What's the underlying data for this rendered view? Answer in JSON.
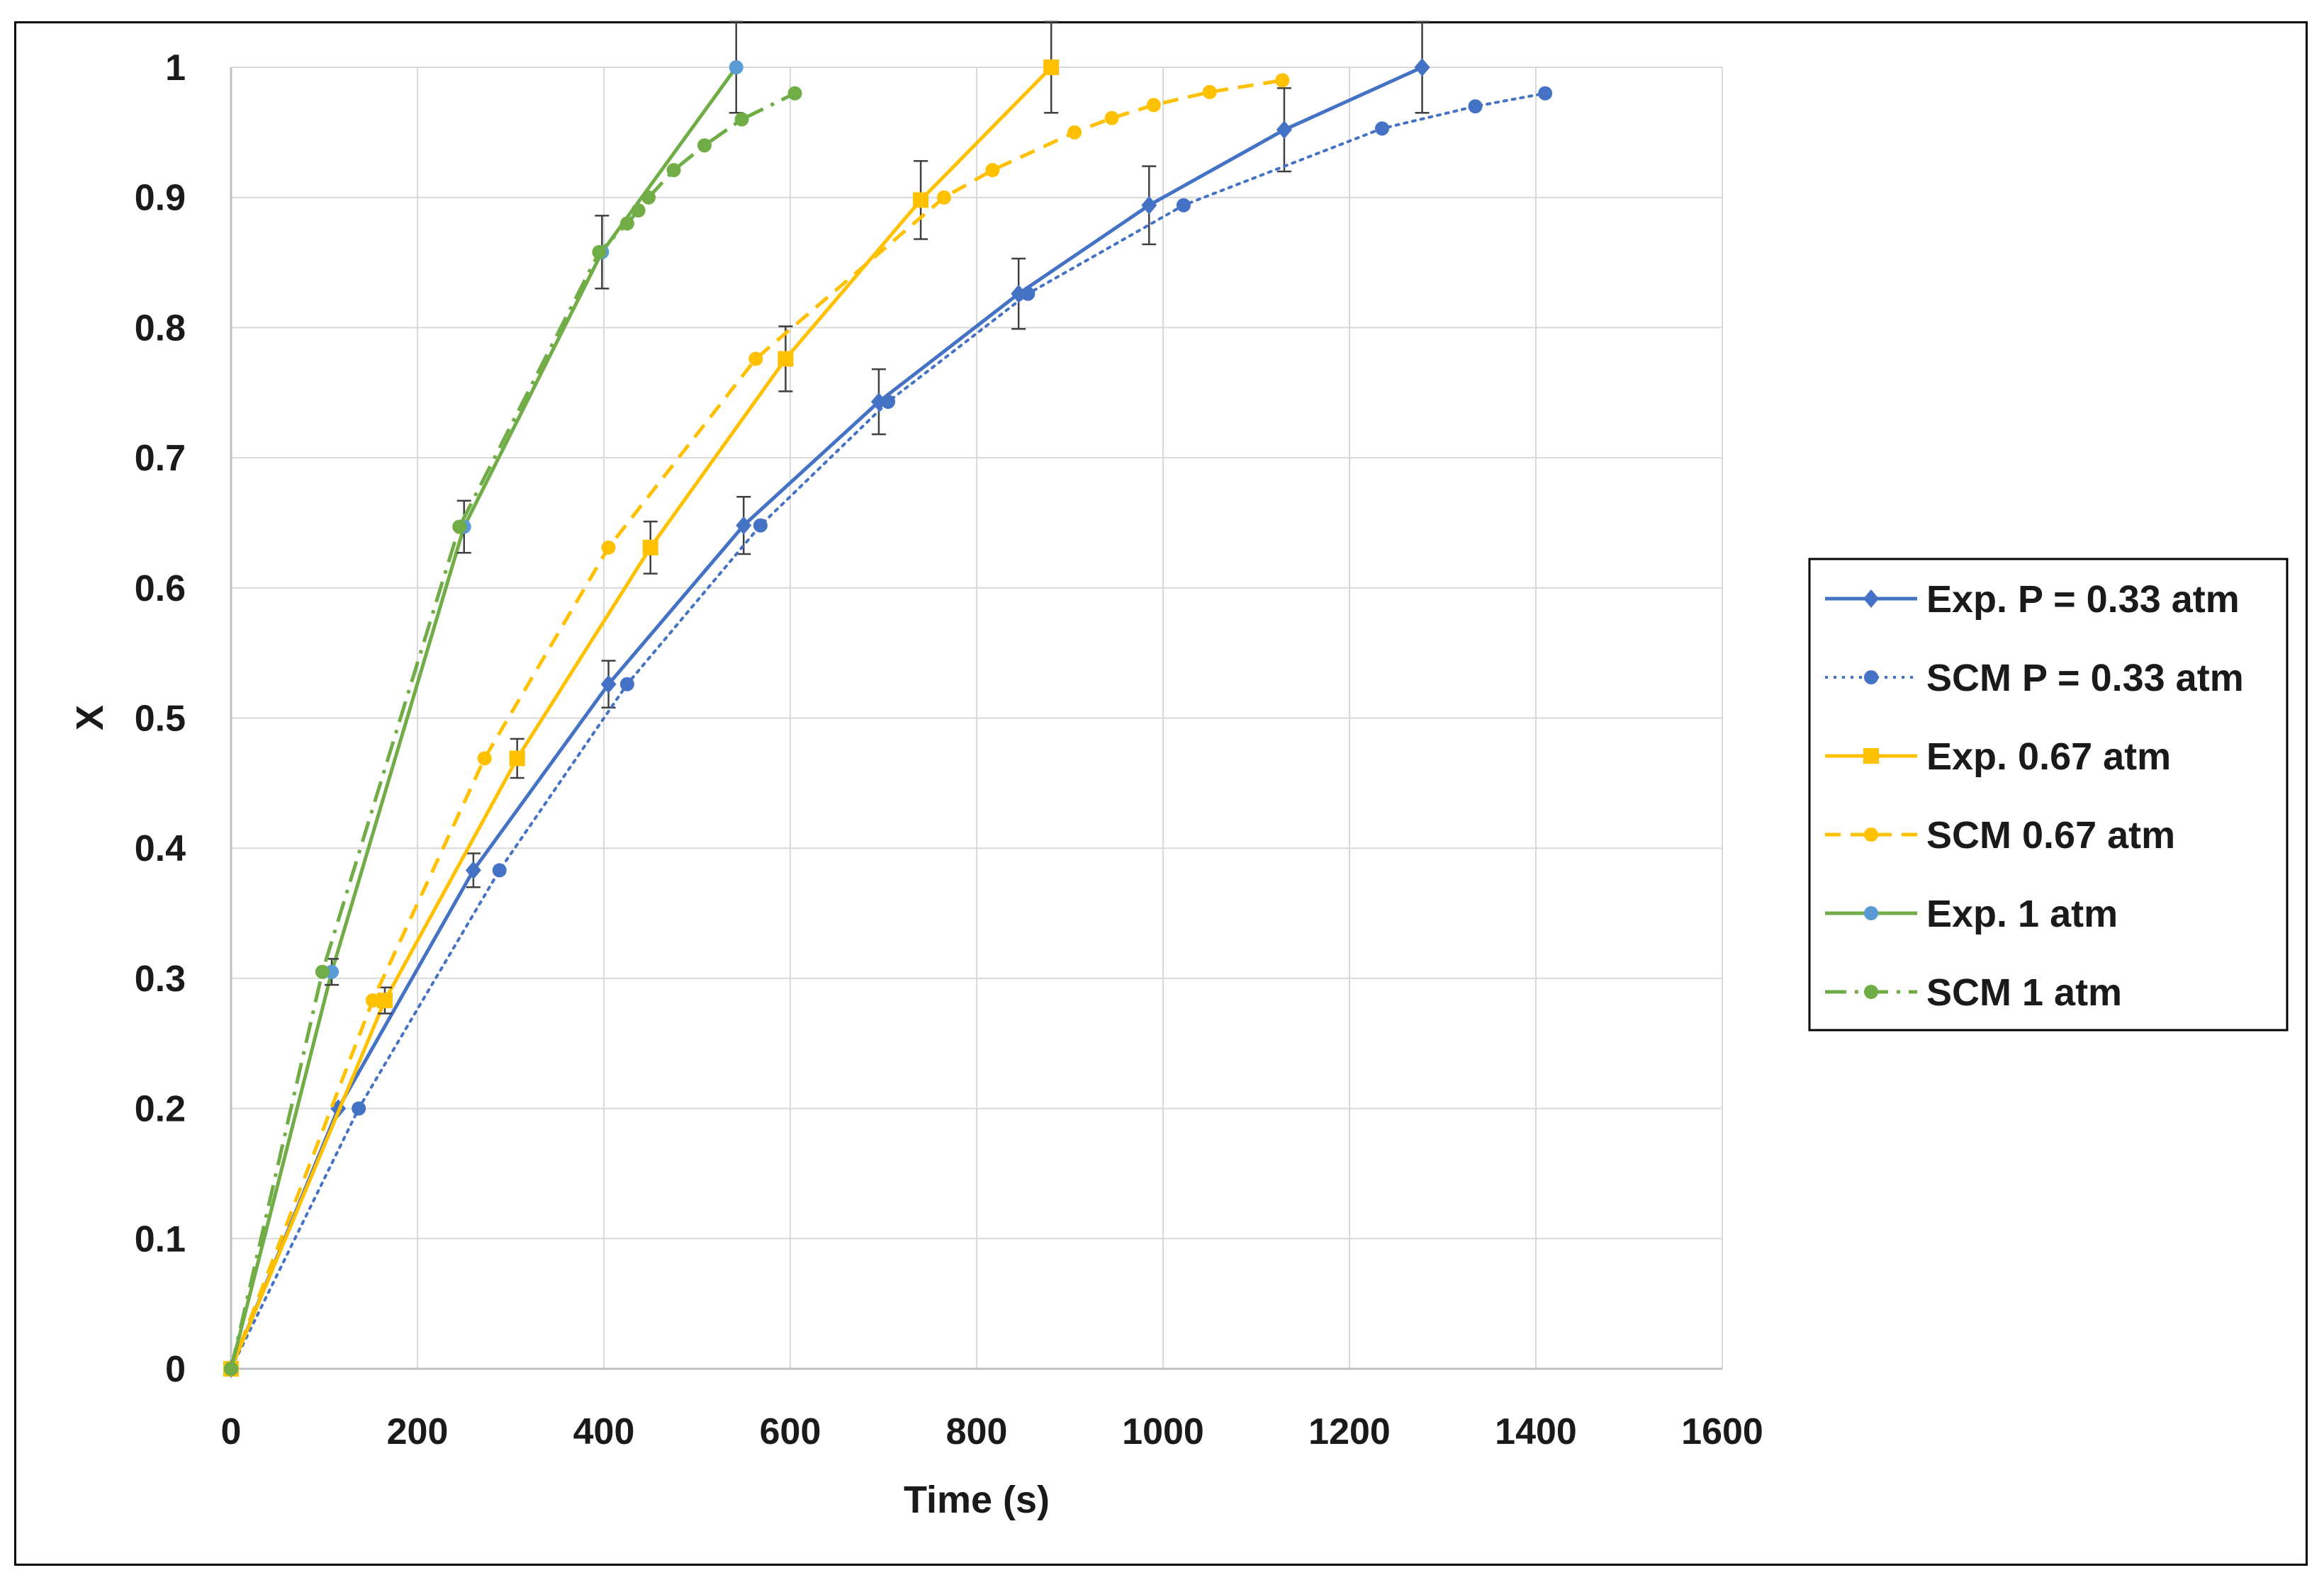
{
  "chart_data": {
    "type": "scatter",
    "title": "",
    "xlabel": "Time (s)",
    "ylabel": "X",
    "xlim": [
      0,
      1600
    ],
    "ylim": [
      0,
      1
    ],
    "x_ticks": [
      0,
      200,
      400,
      600,
      800,
      1000,
      1200,
      1400,
      1600
    ],
    "y_ticks": [
      0,
      0.1,
      0.2,
      0.3,
      0.4,
      0.5,
      0.6,
      0.7,
      0.8,
      0.9,
      1
    ],
    "x_tick_labels": [
      "0",
      "200",
      "400",
      "600",
      "800",
      "1000",
      "1200",
      "1400",
      "1600"
    ],
    "y_tick_labels": [
      "0",
      "0.1",
      "0.2",
      "0.3",
      "0.4",
      "0.5",
      "0.6",
      "0.7",
      "0.8",
      "0.9",
      "1"
    ],
    "grid": true,
    "legend_position": "right",
    "series": [
      {
        "name": "Exp. P = 0.33 atm",
        "color": "#4472C4",
        "line": "solid",
        "marker": "diamond",
        "x": [
          0,
          115,
          260,
          405,
          550,
          695,
          845,
          985,
          1130,
          1278
        ],
        "y": [
          0,
          0.2,
          0.383,
          0.526,
          0.648,
          0.743,
          0.826,
          0.894,
          0.952,
          1.0
        ],
        "error": [
          0,
          0,
          0.013,
          0.018,
          0.022,
          0.025,
          0.027,
          0.03,
          0.032,
          0.035
        ]
      },
      {
        "name": "SCM P = 0.33 atm",
        "color": "#4472C4",
        "line": "dotted",
        "marker": "circle",
        "x": [
          0,
          137,
          288,
          425,
          568,
          705,
          855,
          1022,
          1235,
          1335,
          1410
        ],
        "y": [
          0,
          0.2,
          0.383,
          0.526,
          0.648,
          0.743,
          0.826,
          0.894,
          0.953,
          0.97,
          0.98
        ]
      },
      {
        "name": "Exp. 0.67 atm",
        "color": "#FFC000",
        "line": "solid",
        "marker": "square",
        "x": [
          0,
          165,
          307,
          450,
          595,
          740,
          880
        ],
        "y": [
          0,
          0.283,
          0.469,
          0.631,
          0.776,
          0.898,
          1.0
        ],
        "error": [
          0,
          0.01,
          0.015,
          0.02,
          0.025,
          0.03,
          0.035
        ]
      },
      {
        "name": "SCM 0.67 atm",
        "color": "#FFC000",
        "line": "dashed",
        "marker": "circle",
        "x": [
          0,
          152,
          272,
          405,
          563,
          765,
          817,
          905,
          945,
          990,
          1050,
          1128
        ],
        "y": [
          0,
          0.283,
          0.469,
          0.631,
          0.776,
          0.9,
          0.921,
          0.95,
          0.961,
          0.971,
          0.981,
          0.99
        ]
      },
      {
        "name": "Exp. 1 atm",
        "color": "#70AD47",
        "line": "solid",
        "marker": "circle",
        "marker_color": "#5B9BD5",
        "x": [
          0,
          108,
          250,
          398,
          542
        ],
        "y": [
          0,
          0.305,
          0.647,
          0.858,
          1.0
        ],
        "error": [
          0,
          0.01,
          0.02,
          0.028,
          0.035
        ]
      },
      {
        "name": "SCM 1 atm",
        "color": "#70AD47",
        "line": "dashdot",
        "marker": "circle",
        "x": [
          0,
          98,
          245,
          395,
          425,
          437,
          448,
          475,
          508,
          548,
          605
        ],
        "y": [
          0,
          0.305,
          0.647,
          0.858,
          0.88,
          0.89,
          0.9,
          0.921,
          0.94,
          0.96,
          0.98
        ]
      }
    ]
  }
}
